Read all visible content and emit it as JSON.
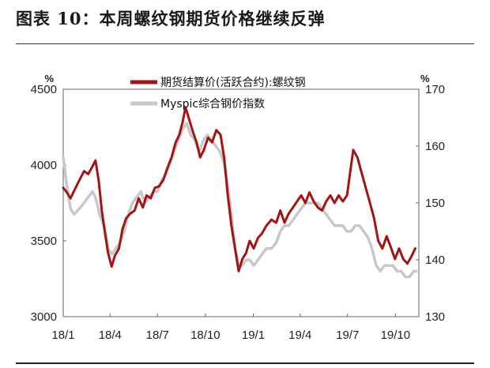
{
  "figure": {
    "title": "图表 10：本周螺纹钢期货价格继续反弹"
  },
  "chart_data": {
    "type": "line",
    "dual_axis": true,
    "legend_position": "top-center",
    "grid": false,
    "y_left": {
      "unit": "%",
      "range": [
        3000,
        4500
      ],
      "ticks": [
        3000,
        3500,
        4000,
        4500
      ]
    },
    "y_right": {
      "unit": "%",
      "range": [
        130,
        170
      ],
      "ticks": [
        130,
        140,
        150,
        160,
        170
      ]
    },
    "x_axis": {
      "range": [
        "2018-01-01",
        "2019-11-15"
      ],
      "ticks": [
        {
          "label": "18/1",
          "date": "2018-01-01"
        },
        {
          "label": "18/4",
          "date": "2018-04-01"
        },
        {
          "label": "18/7",
          "date": "2018-07-01"
        },
        {
          "label": "18/10",
          "date": "2018-10-01"
        },
        {
          "label": "19/1",
          "date": "2019-01-01"
        },
        {
          "label": "19/4",
          "date": "2019-04-01"
        },
        {
          "label": "19/7",
          "date": "2019-07-01"
        },
        {
          "label": "19/10",
          "date": "2019-10-01"
        }
      ]
    },
    "series": [
      {
        "name": "期货结算价(活跃合约):螺纹钢",
        "axis": "left",
        "color": "#a31515",
        "points": [
          [
            "2018-01-01",
            3850
          ],
          [
            "2018-01-08",
            3820
          ],
          [
            "2018-01-15",
            3780
          ],
          [
            "2018-01-22",
            3830
          ],
          [
            "2018-02-01",
            3900
          ],
          [
            "2018-02-10",
            3960
          ],
          [
            "2018-02-18",
            3940
          ],
          [
            "2018-02-26",
            3990
          ],
          [
            "2018-03-04",
            4030
          ],
          [
            "2018-03-10",
            3900
          ],
          [
            "2018-03-16",
            3700
          ],
          [
            "2018-03-22",
            3560
          ],
          [
            "2018-03-28",
            3420
          ],
          [
            "2018-04-04",
            3330
          ],
          [
            "2018-04-10",
            3400
          ],
          [
            "2018-04-18",
            3450
          ],
          [
            "2018-04-25",
            3580
          ],
          [
            "2018-05-02",
            3650
          ],
          [
            "2018-05-10",
            3680
          ],
          [
            "2018-05-18",
            3700
          ],
          [
            "2018-05-26",
            3780
          ],
          [
            "2018-06-03",
            3720
          ],
          [
            "2018-06-10",
            3800
          ],
          [
            "2018-06-18",
            3780
          ],
          [
            "2018-06-26",
            3850
          ],
          [
            "2018-07-04",
            3860
          ],
          [
            "2018-07-12",
            3900
          ],
          [
            "2018-07-20",
            3980
          ],
          [
            "2018-07-28",
            4050
          ],
          [
            "2018-08-05",
            4150
          ],
          [
            "2018-08-12",
            4200
          ],
          [
            "2018-08-18",
            4280
          ],
          [
            "2018-08-24",
            4380
          ],
          [
            "2018-08-31",
            4300
          ],
          [
            "2018-09-07",
            4220
          ],
          [
            "2018-09-14",
            4150
          ],
          [
            "2018-09-21",
            4050
          ],
          [
            "2018-09-28",
            4100
          ],
          [
            "2018-10-06",
            4180
          ],
          [
            "2018-10-14",
            4150
          ],
          [
            "2018-10-22",
            4230
          ],
          [
            "2018-10-30",
            4200
          ],
          [
            "2018-11-06",
            4050
          ],
          [
            "2018-11-13",
            3800
          ],
          [
            "2018-11-20",
            3600
          ],
          [
            "2018-11-27",
            3450
          ],
          [
            "2018-12-04",
            3300
          ],
          [
            "2018-12-11",
            3380
          ],
          [
            "2018-12-18",
            3420
          ],
          [
            "2018-12-25",
            3500
          ],
          [
            "2019-01-02",
            3450
          ],
          [
            "2019-01-10",
            3520
          ],
          [
            "2019-01-18",
            3550
          ],
          [
            "2019-01-26",
            3600
          ],
          [
            "2019-02-05",
            3640
          ],
          [
            "2019-02-14",
            3620
          ],
          [
            "2019-02-22",
            3700
          ],
          [
            "2019-03-02",
            3620
          ],
          [
            "2019-03-10",
            3680
          ],
          [
            "2019-03-18",
            3720
          ],
          [
            "2019-03-26",
            3760
          ],
          [
            "2019-04-03",
            3800
          ],
          [
            "2019-04-11",
            3750
          ],
          [
            "2019-04-19",
            3820
          ],
          [
            "2019-04-27",
            3760
          ],
          [
            "2019-05-05",
            3720
          ],
          [
            "2019-05-13",
            3700
          ],
          [
            "2019-05-21",
            3760
          ],
          [
            "2019-05-29",
            3800
          ],
          [
            "2019-06-06",
            3750
          ],
          [
            "2019-06-14",
            3800
          ],
          [
            "2019-06-22",
            3760
          ],
          [
            "2019-06-30",
            3800
          ],
          [
            "2019-07-06",
            3950
          ],
          [
            "2019-07-12",
            4100
          ],
          [
            "2019-07-20",
            4050
          ],
          [
            "2019-07-28",
            3950
          ],
          [
            "2019-08-05",
            3850
          ],
          [
            "2019-08-13",
            3750
          ],
          [
            "2019-08-21",
            3650
          ],
          [
            "2019-08-29",
            3500
          ],
          [
            "2019-09-06",
            3450
          ],
          [
            "2019-09-14",
            3530
          ],
          [
            "2019-09-22",
            3460
          ],
          [
            "2019-09-30",
            3380
          ],
          [
            "2019-10-08",
            3450
          ],
          [
            "2019-10-16",
            3380
          ],
          [
            "2019-10-24",
            3350
          ],
          [
            "2019-11-01",
            3400
          ],
          [
            "2019-11-08",
            3450
          ]
        ]
      },
      {
        "name": "Myspic综合钢价指数",
        "axis": "right",
        "color": "#c8c8c8",
        "points": [
          [
            "2018-01-01",
            158
          ],
          [
            "2018-01-08",
            153
          ],
          [
            "2018-01-15",
            149
          ],
          [
            "2018-01-22",
            148
          ],
          [
            "2018-02-01",
            149
          ],
          [
            "2018-02-10",
            150
          ],
          [
            "2018-02-18",
            151
          ],
          [
            "2018-02-26",
            152
          ],
          [
            "2018-03-04",
            151
          ],
          [
            "2018-03-12",
            148
          ],
          [
            "2018-03-20",
            146
          ],
          [
            "2018-03-28",
            142
          ],
          [
            "2018-04-05",
            141
          ],
          [
            "2018-04-12",
            142
          ],
          [
            "2018-04-20",
            143
          ],
          [
            "2018-04-28",
            145
          ],
          [
            "2018-05-06",
            148
          ],
          [
            "2018-05-14",
            150
          ],
          [
            "2018-05-22",
            151
          ],
          [
            "2018-05-30",
            152
          ],
          [
            "2018-06-07",
            150
          ],
          [
            "2018-06-15",
            151
          ],
          [
            "2018-06-23",
            152
          ],
          [
            "2018-07-01",
            152
          ],
          [
            "2018-07-09",
            154
          ],
          [
            "2018-07-17",
            155
          ],
          [
            "2018-07-25",
            157
          ],
          [
            "2018-08-02",
            159
          ],
          [
            "2018-08-10",
            161
          ],
          [
            "2018-08-18",
            163
          ],
          [
            "2018-08-26",
            164
          ],
          [
            "2018-09-03",
            162
          ],
          [
            "2018-09-11",
            161
          ],
          [
            "2018-09-19",
            159
          ],
          [
            "2018-09-27",
            161
          ],
          [
            "2018-10-05",
            162
          ],
          [
            "2018-10-13",
            161
          ],
          [
            "2018-10-21",
            160
          ],
          [
            "2018-10-29",
            159
          ],
          [
            "2018-11-06",
            157
          ],
          [
            "2018-11-13",
            153
          ],
          [
            "2018-11-20",
            148
          ],
          [
            "2018-11-27",
            142
          ],
          [
            "2018-12-04",
            139
          ],
          [
            "2018-12-11",
            139
          ],
          [
            "2018-12-18",
            140
          ],
          [
            "2018-12-25",
            140
          ],
          [
            "2019-01-02",
            139
          ],
          [
            "2019-01-10",
            140
          ],
          [
            "2019-01-18",
            141
          ],
          [
            "2019-01-26",
            142
          ],
          [
            "2019-02-05",
            142
          ],
          [
            "2019-02-14",
            143
          ],
          [
            "2019-02-22",
            145
          ],
          [
            "2019-03-02",
            146
          ],
          [
            "2019-03-10",
            146
          ],
          [
            "2019-03-18",
            147
          ],
          [
            "2019-03-26",
            148
          ],
          [
            "2019-04-03",
            149
          ],
          [
            "2019-04-11",
            150
          ],
          [
            "2019-04-19",
            150
          ],
          [
            "2019-04-27",
            150
          ],
          [
            "2019-05-05",
            150
          ],
          [
            "2019-05-13",
            149
          ],
          [
            "2019-05-21",
            148
          ],
          [
            "2019-05-29",
            147
          ],
          [
            "2019-06-06",
            146
          ],
          [
            "2019-06-14",
            146
          ],
          [
            "2019-06-22",
            146
          ],
          [
            "2019-06-30",
            145
          ],
          [
            "2019-07-08",
            145
          ],
          [
            "2019-07-16",
            146
          ],
          [
            "2019-07-24",
            146
          ],
          [
            "2019-08-01",
            145
          ],
          [
            "2019-08-09",
            144
          ],
          [
            "2019-08-17",
            142
          ],
          [
            "2019-08-25",
            139
          ],
          [
            "2019-09-02",
            138
          ],
          [
            "2019-09-10",
            139
          ],
          [
            "2019-09-18",
            139
          ],
          [
            "2019-09-26",
            139
          ],
          [
            "2019-10-04",
            138
          ],
          [
            "2019-10-12",
            138
          ],
          [
            "2019-10-20",
            137
          ],
          [
            "2019-10-28",
            137
          ],
          [
            "2019-11-05",
            138
          ],
          [
            "2019-11-10",
            138
          ]
        ]
      }
    ]
  }
}
